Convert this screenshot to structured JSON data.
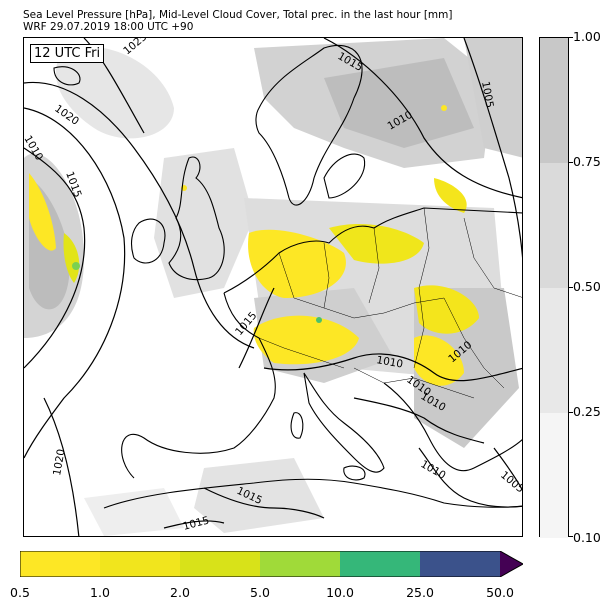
{
  "header": {
    "title_line1": "Sea Level Pressure [hPa], Mid-Level Cloud Cover, Total prec. in the last hour [mm]",
    "title_line2": "WRF 29.07.2019 18:00 UTC +90"
  },
  "map": {
    "valid_time_label": "12 UTC Fri",
    "isobar_labels": [
      "1025",
      "1020",
      "1010",
      "1015",
      "1015",
      "1005",
      "1010",
      "1015",
      "1010",
      "1010",
      "1010",
      "1010",
      "1020",
      "1015",
      "1015",
      "1010",
      "1005"
    ],
    "colors": {
      "land_outline": "#000000",
      "isobar": "#000000",
      "cloud_light": "#dcdcdc",
      "cloud_mid": "#bdbdbd",
      "precip_low": "#fde725",
      "precip_mid": "#a0da39",
      "precip_high": "#4ac16d"
    }
  },
  "cloud_colorbar": {
    "ticks": [
      "1.00",
      "0.75",
      "0.50",
      "0.25",
      "0.10"
    ],
    "colors": [
      "#c8c8c8",
      "#dadada",
      "#e8e8e8",
      "#f5f5f5"
    ]
  },
  "precip_colorbar": {
    "ticks": [
      "0.5",
      "1.0",
      "2.0",
      "5.0",
      "10.0",
      "25.0",
      "50.0"
    ],
    "colors": [
      "#fde725",
      "#f1e51d",
      "#d8e219",
      "#a0da39",
      "#35b779",
      "#3b528b",
      "#440154"
    ]
  }
}
